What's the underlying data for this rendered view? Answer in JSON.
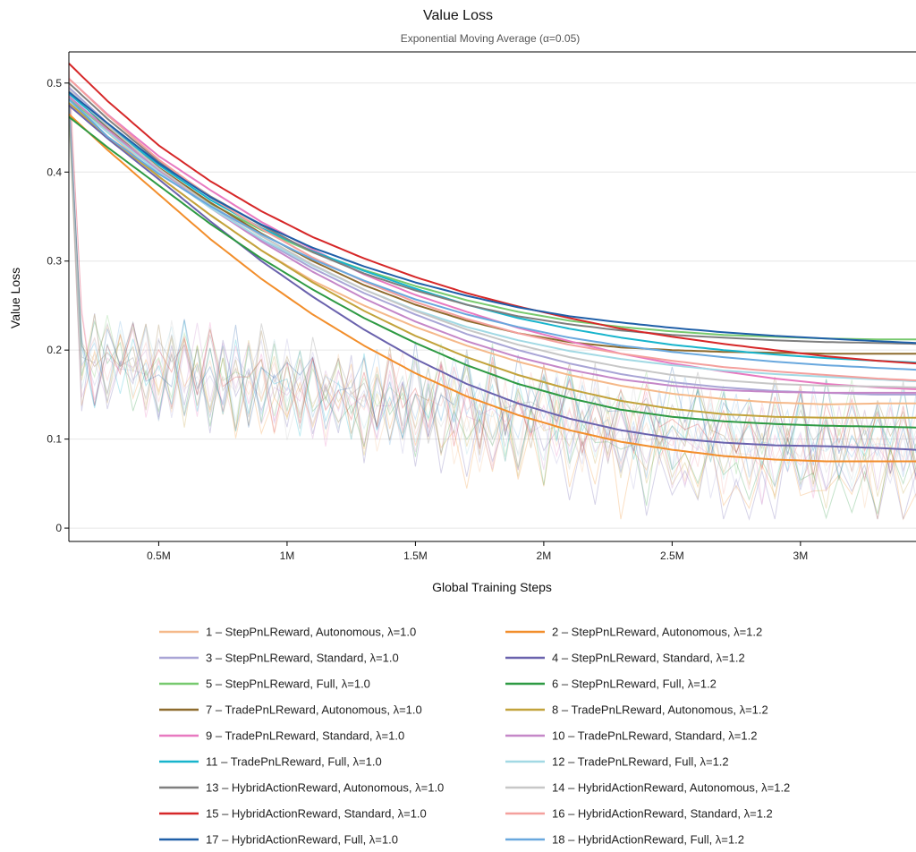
{
  "chart_data": {
    "type": "line",
    "title": "Value Loss",
    "subtitle": "Exponential Moving Average (α=0.05)",
    "xlabel": "Global Training Steps",
    "ylabel": "Value Loss",
    "xlim": [
      150000,
      3450000
    ],
    "ylim": [
      -0.015,
      0.535
    ],
    "x_ticks": [
      500000,
      1000000,
      1500000,
      2000000,
      2500000,
      3000000
    ],
    "x_tick_labels": [
      "0.5M",
      "1M",
      "1.5M",
      "2M",
      "2.5M",
      "3M"
    ],
    "y_ticks": [
      0,
      0.1,
      0.2,
      0.3,
      0.4,
      0.5
    ],
    "y_tick_labels": [
      "0",
      "0.1",
      "0.2",
      "0.3",
      "0.4",
      "0.5"
    ],
    "grid": "horizontal",
    "legend_position": "bottom",
    "smoothed_x": [
      150000,
      300000,
      500000,
      700000,
      900000,
      1100000,
      1300000,
      1500000,
      1700000,
      1900000,
      2100000,
      2300000,
      2500000,
      2700000,
      2900000,
      3100000,
      3300000,
      3450000
    ],
    "raw_x_step": 50000,
    "series": [
      {
        "name": "1 – StepPnLReward, Autonomous, λ=1.0",
        "color": "#f5b98a",
        "values": [
          0.485,
          0.445,
          0.395,
          0.352,
          0.312,
          0.278,
          0.25,
          0.226,
          0.205,
          0.187,
          0.172,
          0.16,
          0.151,
          0.145,
          0.141,
          0.139,
          0.14,
          0.14
        ]
      },
      {
        "name": "2 – StepPnLReward, Autonomous, λ=1.2",
        "color": "#f28e2b",
        "values": [
          0.465,
          0.425,
          0.375,
          0.325,
          0.28,
          0.24,
          0.205,
          0.174,
          0.148,
          0.127,
          0.11,
          0.097,
          0.088,
          0.081,
          0.077,
          0.075,
          0.075,
          0.075
        ]
      },
      {
        "name": "3 – StepPnLReward, Standard, λ=1.0",
        "color": "#a9a5d6",
        "values": [
          0.495,
          0.455,
          0.405,
          0.362,
          0.324,
          0.292,
          0.264,
          0.24,
          0.218,
          0.2,
          0.185,
          0.173,
          0.164,
          0.158,
          0.154,
          0.152,
          0.15,
          0.15
        ]
      },
      {
        "name": "4 – StepPnLReward, Standard, λ=1.2",
        "color": "#6a62ad",
        "values": [
          0.475,
          0.438,
          0.392,
          0.345,
          0.3,
          0.26,
          0.223,
          0.19,
          0.162,
          0.14,
          0.123,
          0.11,
          0.101,
          0.096,
          0.093,
          0.092,
          0.09,
          0.088
        ]
      },
      {
        "name": "5 – StepPnLReward, Full, λ=1.0",
        "color": "#77c96e",
        "values": [
          0.482,
          0.445,
          0.402,
          0.365,
          0.335,
          0.31,
          0.29,
          0.272,
          0.256,
          0.243,
          0.233,
          0.226,
          0.221,
          0.217,
          0.215,
          0.213,
          0.212,
          0.212
        ]
      },
      {
        "name": "6 – StepPnLReward, Full, λ=1.2",
        "color": "#2e9a43",
        "values": [
          0.462,
          0.428,
          0.385,
          0.342,
          0.303,
          0.268,
          0.236,
          0.208,
          0.183,
          0.162,
          0.146,
          0.133,
          0.125,
          0.12,
          0.117,
          0.115,
          0.114,
          0.113
        ]
      },
      {
        "name": "7 – TradePnLReward, Autonomous, λ=1.0",
        "color": "#8e6b2e",
        "values": [
          0.49,
          0.45,
          0.405,
          0.366,
          0.331,
          0.3,
          0.273,
          0.251,
          0.233,
          0.219,
          0.209,
          0.203,
          0.2,
          0.198,
          0.197,
          0.196,
          0.196,
          0.196
        ]
      },
      {
        "name": "8 – TradePnLReward, Autonomous, λ=1.2",
        "color": "#c2a33c",
        "values": [
          0.478,
          0.44,
          0.395,
          0.352,
          0.312,
          0.276,
          0.244,
          0.216,
          0.192,
          0.172,
          0.156,
          0.143,
          0.134,
          0.128,
          0.125,
          0.124,
          0.124,
          0.124
        ]
      },
      {
        "name": "9 – TradePnLReward, Standard, λ=1.0",
        "color": "#e879c0",
        "values": [
          0.505,
          0.465,
          0.418,
          0.38,
          0.344,
          0.313,
          0.285,
          0.262,
          0.243,
          0.225,
          0.21,
          0.196,
          0.185,
          0.176,
          0.168,
          0.162,
          0.158,
          0.156
        ]
      },
      {
        "name": "10 – TradePnLReward, Standard, λ=1.2",
        "color": "#c587c8",
        "values": [
          0.485,
          0.448,
          0.402,
          0.36,
          0.322,
          0.288,
          0.258,
          0.232,
          0.21,
          0.192,
          0.178,
          0.167,
          0.16,
          0.155,
          0.153,
          0.152,
          0.152,
          0.152
        ]
      },
      {
        "name": "11 – TradePnLReward, Full, λ=1.0",
        "color": "#17b4cc",
        "values": [
          0.488,
          0.452,
          0.408,
          0.369,
          0.337,
          0.311,
          0.289,
          0.269,
          0.251,
          0.236,
          0.224,
          0.214,
          0.206,
          0.2,
          0.195,
          0.191,
          0.188,
          0.186
        ]
      },
      {
        "name": "12 – TradePnLReward, Full, λ=1.2",
        "color": "#a2d9e4",
        "values": [
          0.48,
          0.445,
          0.4,
          0.36,
          0.325,
          0.295,
          0.268,
          0.245,
          0.226,
          0.211,
          0.199,
          0.19,
          0.183,
          0.177,
          0.173,
          0.17,
          0.167,
          0.165
        ]
      },
      {
        "name": "13 – HybridActionReward, Autonomous, λ=1.0",
        "color": "#7f7f7f",
        "values": [
          0.5,
          0.46,
          0.412,
          0.373,
          0.34,
          0.31,
          0.286,
          0.267,
          0.251,
          0.238,
          0.229,
          0.222,
          0.217,
          0.214,
          0.211,
          0.209,
          0.208,
          0.207
        ]
      },
      {
        "name": "14 – HybridActionReward, Autonomous, λ=1.2",
        "color": "#c7c7c7",
        "values": [
          0.492,
          0.452,
          0.404,
          0.363,
          0.328,
          0.296,
          0.268,
          0.244,
          0.223,
          0.206,
          0.192,
          0.181,
          0.172,
          0.166,
          0.162,
          0.16,
          0.159,
          0.158
        ]
      },
      {
        "name": "15 – HybridActionReward, Standard, λ=1.0",
        "color": "#d62728",
        "values": [
          0.522,
          0.48,
          0.43,
          0.39,
          0.356,
          0.327,
          0.303,
          0.282,
          0.264,
          0.249,
          0.236,
          0.224,
          0.215,
          0.207,
          0.2,
          0.193,
          0.188,
          0.185
        ]
      },
      {
        "name": "16 – HybridActionReward, Standard, λ=1.2",
        "color": "#f4a09d",
        "values": [
          0.505,
          0.464,
          0.414,
          0.372,
          0.336,
          0.304,
          0.277,
          0.254,
          0.235,
          0.219,
          0.206,
          0.196,
          0.188,
          0.181,
          0.176,
          0.172,
          0.168,
          0.166
        ]
      },
      {
        "name": "17 – HybridActionReward, Full, λ=1.0",
        "color": "#1f5fa8",
        "values": [
          0.49,
          0.455,
          0.41,
          0.372,
          0.341,
          0.315,
          0.294,
          0.276,
          0.261,
          0.248,
          0.238,
          0.231,
          0.225,
          0.22,
          0.216,
          0.213,
          0.21,
          0.208
        ]
      },
      {
        "name": "18 – HybridActionReward, Full, λ=1.2",
        "color": "#69a8de",
        "values": [
          0.482,
          0.44,
          0.398,
          0.362,
          0.33,
          0.302,
          0.278,
          0.257,
          0.24,
          0.226,
          0.214,
          0.205,
          0.198,
          0.192,
          0.187,
          0.183,
          0.18,
          0.178
        ]
      }
    ]
  }
}
